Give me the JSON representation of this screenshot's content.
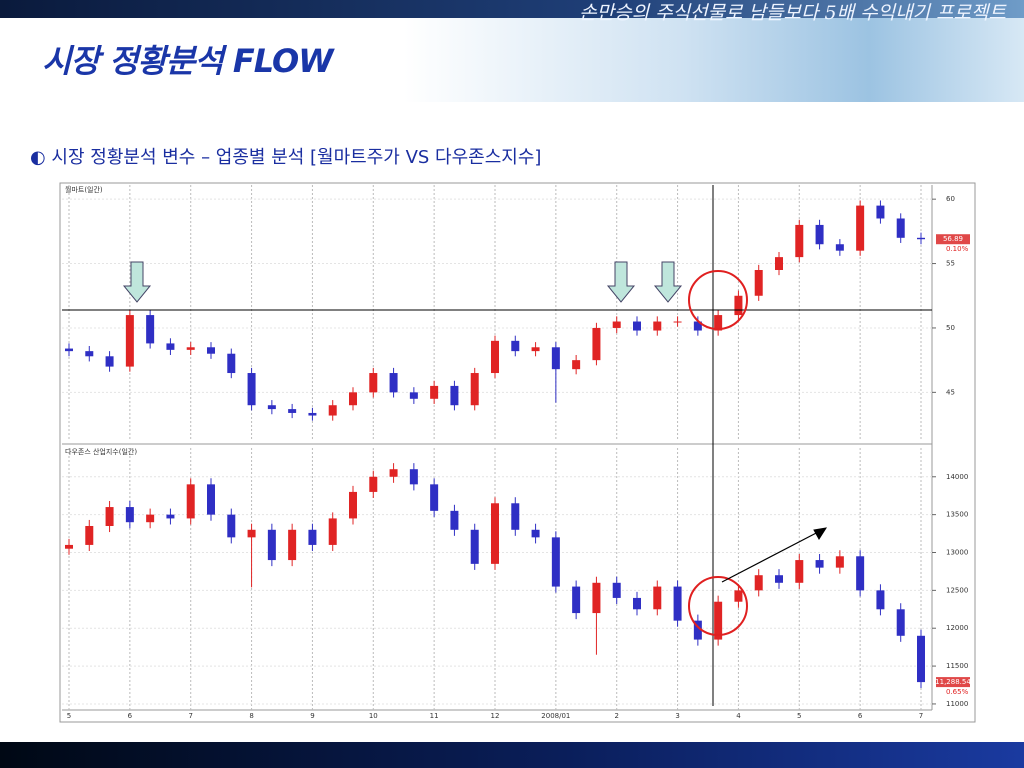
{
  "slide": {
    "banner": "손만승의 주식선물로 남들보다 5배 수익내기 프로젝트",
    "title": "시장 정황분석 FLOW",
    "heading": "◐ 시장 정황분석 변수 – 업종별 분석 [월마트주가 VS 다우존스지수]"
  },
  "chart_data": [
    {
      "type": "candlestick",
      "title": "월마트(일간)",
      "up_color": "#e02424",
      "down_color": "#2f2fc4",
      "grid": true,
      "ylim": [
        41.3,
        61.1
      ],
      "yticks": [
        45,
        50,
        55,
        60
      ],
      "change_label": "0.10%",
      "open": [
        48.4,
        48.2,
        47.8,
        47.0,
        51.0,
        48.8,
        48.3,
        48.5,
        48.0,
        46.5,
        44.0,
        43.7,
        43.4,
        43.2,
        44.0,
        45.0,
        46.5,
        45.0,
        44.5,
        45.5,
        44.0,
        46.5,
        49.0,
        48.2,
        48.5,
        46.8,
        47.5,
        50.0,
        50.5,
        49.8,
        50.5,
        50.5,
        49.8,
        51.0,
        52.5,
        54.5,
        55.5,
        58.0,
        56.5,
        56.0,
        59.5,
        58.5,
        57.0
      ],
      "high": [
        48.8,
        48.6,
        48.2,
        51.4,
        51.4,
        49.2,
        48.9,
        48.9,
        48.4,
        46.9,
        44.4,
        44.1,
        43.8,
        44.4,
        45.4,
        46.9,
        46.9,
        45.4,
        45.9,
        45.9,
        46.9,
        49.4,
        49.4,
        48.9,
        48.9,
        47.9,
        50.4,
        50.9,
        50.9,
        50.9,
        50.9,
        50.9,
        51.4,
        52.9,
        54.9,
        55.9,
        58.4,
        58.4,
        56.9,
        59.9,
        59.9,
        58.9,
        57.4
      ],
      "low": [
        47.8,
        47.4,
        46.6,
        46.6,
        48.4,
        47.9,
        47.9,
        47.6,
        46.1,
        43.6,
        43.3,
        43.0,
        42.8,
        42.8,
        43.6,
        44.6,
        44.6,
        44.1,
        44.1,
        43.6,
        43.6,
        46.1,
        47.8,
        47.8,
        44.2,
        46.4,
        47.1,
        49.6,
        49.4,
        49.4,
        50.1,
        49.4,
        49.4,
        50.6,
        52.1,
        54.1,
        55.1,
        56.1,
        55.6,
        55.6,
        58.1,
        56.6,
        56.5
      ],
      "close": [
        48.2,
        47.8,
        47.0,
        51.0,
        48.8,
        48.3,
        48.5,
        48.0,
        46.5,
        44.0,
        43.7,
        43.4,
        43.2,
        44.0,
        45.0,
        46.5,
        45.0,
        44.5,
        45.5,
        44.0,
        46.5,
        49.0,
        48.2,
        48.5,
        46.8,
        47.5,
        50.0,
        50.5,
        49.8,
        50.5,
        50.5,
        49.8,
        51.0,
        52.5,
        54.5,
        55.5,
        58.0,
        56.5,
        56.0,
        59.5,
        58.5,
        57.0,
        56.89
      ]
    },
    {
      "type": "candlestick",
      "title": "다우존스 산업지수(일간)",
      "up_color": "#e02424",
      "down_color": "#2f2fc4",
      "grid": true,
      "ylim": [
        10920,
        14380
      ],
      "yticks": [
        11000,
        11500,
        12000,
        12500,
        13000,
        13500,
        14000
      ],
      "change_label": "0.65%",
      "last_close_label": "11,288.54",
      "categories": [
        "5",
        null,
        null,
        "6",
        null,
        null,
        "7",
        null,
        null,
        "8",
        null,
        null,
        "9",
        null,
        null,
        "10",
        null,
        null,
        "11",
        null,
        null,
        "12",
        null,
        null,
        "2008/01",
        null,
        null,
        "2",
        null,
        null,
        "3",
        null,
        null,
        "4",
        null,
        null,
        "5",
        null,
        null,
        "6",
        null,
        null,
        "7"
      ],
      "open": [
        13050,
        13100,
        13350,
        13600,
        13400,
        13500,
        13450,
        13900,
        13500,
        13200,
        13300,
        12900,
        13300,
        13100,
        13450,
        13800,
        14000,
        14100,
        13900,
        13550,
        13300,
        12850,
        13650,
        13300,
        13200,
        12550,
        12200,
        12600,
        12400,
        12250,
        12550,
        12100,
        11850,
        12350,
        12500,
        12700,
        12600,
        12900,
        12800,
        12950,
        12500,
        12250,
        11900
      ],
      "high": [
        13180,
        13430,
        13680,
        13680,
        13580,
        13580,
        13980,
        13980,
        13580,
        13380,
        13380,
        13380,
        13380,
        13530,
        13880,
        14080,
        14180,
        14180,
        13980,
        13630,
        13380,
        13730,
        13730,
        13380,
        13280,
        12630,
        12680,
        12680,
        12480,
        12630,
        12630,
        12180,
        12430,
        12580,
        12780,
        12780,
        12980,
        12980,
        13030,
        13030,
        12580,
        12330,
        11980
      ],
      "low": [
        12970,
        13020,
        13270,
        13320,
        13320,
        13370,
        13370,
        13420,
        13120,
        12540,
        12820,
        12820,
        13020,
        13020,
        13370,
        13720,
        13920,
        13820,
        13470,
        13220,
        12770,
        12770,
        13220,
        13120,
        12470,
        12120,
        11650,
        12320,
        12170,
        12170,
        12020,
        11770,
        11770,
        12270,
        12420,
        12520,
        12520,
        12720,
        12720,
        12420,
        12170,
        11820,
        11210
      ],
      "close": [
        13100,
        13350,
        13600,
        13400,
        13500,
        13450,
        13900,
        13500,
        13200,
        13300,
        12900,
        13300,
        13100,
        13450,
        13800,
        14000,
        14100,
        13900,
        13550,
        13300,
        12850,
        13650,
        13300,
        13200,
        12550,
        12200,
        12600,
        12400,
        12250,
        12550,
        12100,
        11850,
        12350,
        12500,
        12700,
        12600,
        12900,
        12800,
        12950,
        12500,
        12250,
        11900,
        11288.54
      ]
    }
  ]
}
